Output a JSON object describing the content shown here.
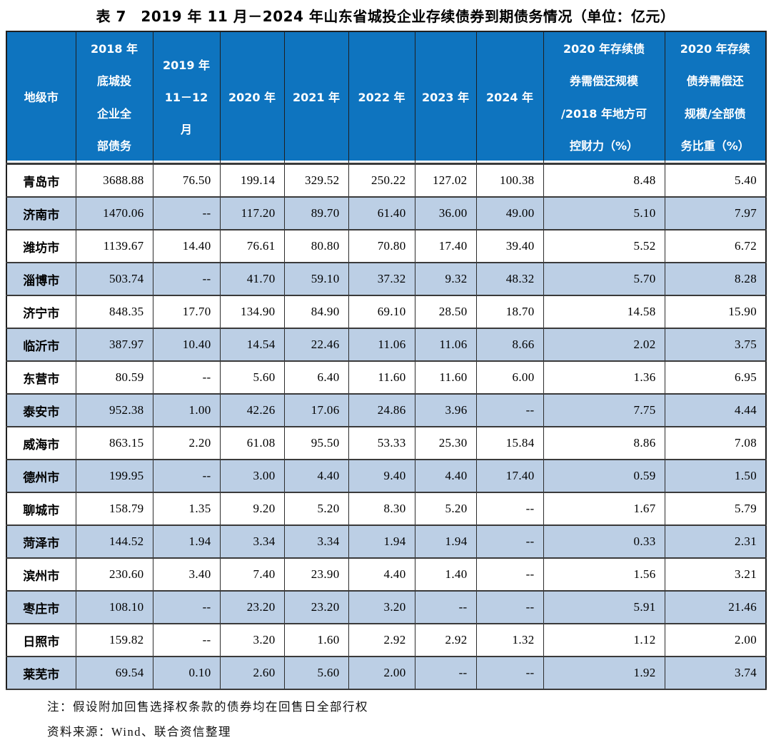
{
  "title": "表 7　2019 年 11 月－2024 年山东省城投企业存续债券到期债务情况（单位：亿元）",
  "table": {
    "columns": [
      "地级市",
      "2018 年\n底城投\n企业全\n部债务",
      "2019 年\n11－12\n月",
      "2020 年",
      "2021 年",
      "2022 年",
      "2023 年",
      "2024 年",
      "2020 年存续债\n券需偿还规模\n/2018 年地方可\n控财力（%）",
      "2020 年存续\n债券需偿还\n规模/全部债\n务比重（%）"
    ],
    "rows": [
      [
        "青岛市",
        "3688.88",
        "76.50",
        "199.14",
        "329.52",
        "250.22",
        "127.02",
        "100.38",
        "8.48",
        "5.40"
      ],
      [
        "济南市",
        "1470.06",
        "--",
        "117.20",
        "89.70",
        "61.40",
        "36.00",
        "49.00",
        "5.10",
        "7.97"
      ],
      [
        "潍坊市",
        "1139.67",
        "14.40",
        "76.61",
        "80.80",
        "70.80",
        "17.40",
        "39.40",
        "5.52",
        "6.72"
      ],
      [
        "淄博市",
        "503.74",
        "--",
        "41.70",
        "59.10",
        "37.32",
        "9.32",
        "48.32",
        "5.70",
        "8.28"
      ],
      [
        "济宁市",
        "848.35",
        "17.70",
        "134.90",
        "84.90",
        "69.10",
        "28.50",
        "18.70",
        "14.58",
        "15.90"
      ],
      [
        "临沂市",
        "387.97",
        "10.40",
        "14.54",
        "22.46",
        "11.06",
        "11.06",
        "8.66",
        "2.02",
        "3.75"
      ],
      [
        "东营市",
        "80.59",
        "--",
        "5.60",
        "6.40",
        "11.60",
        "11.60",
        "6.00",
        "1.36",
        "6.95"
      ],
      [
        "泰安市",
        "952.38",
        "1.00",
        "42.26",
        "17.06",
        "24.86",
        "3.96",
        "--",
        "7.75",
        "4.44"
      ],
      [
        "威海市",
        "863.15",
        "2.20",
        "61.08",
        "95.50",
        "53.33",
        "25.30",
        "15.84",
        "8.86",
        "7.08"
      ],
      [
        "德州市",
        "199.95",
        "--",
        "3.00",
        "4.40",
        "9.40",
        "4.40",
        "17.40",
        "0.59",
        "1.50"
      ],
      [
        "聊城市",
        "158.79",
        "1.35",
        "9.20",
        "5.20",
        "8.30",
        "5.20",
        "--",
        "1.67",
        "5.79"
      ],
      [
        "菏泽市",
        "144.52",
        "1.94",
        "3.34",
        "3.34",
        "1.94",
        "1.94",
        "--",
        "0.33",
        "2.31"
      ],
      [
        "滨州市",
        "230.60",
        "3.40",
        "7.40",
        "23.90",
        "4.40",
        "1.40",
        "--",
        "1.56",
        "3.21"
      ],
      [
        "枣庄市",
        "108.10",
        "--",
        "23.20",
        "23.20",
        "3.20",
        "--",
        "--",
        "5.91",
        "21.46"
      ],
      [
        "日照市",
        "159.82",
        "--",
        "3.20",
        "1.60",
        "2.92",
        "2.92",
        "1.32",
        "1.12",
        "2.00"
      ],
      [
        "莱芜市",
        "69.54",
        "0.10",
        "2.60",
        "5.60",
        "2.00",
        "--",
        "--",
        "1.92",
        "3.74"
      ]
    ]
  },
  "notes": {
    "note": "注：假设附加回售选择权条款的债券均在回售日全部行权",
    "source": "资料来源：Wind、联合资信整理"
  },
  "colors": {
    "header_bg": "#0E74BF",
    "alt_row_bg": "#BCCFE5",
    "border": "#2c2c2c",
    "header_text": "#ffffff",
    "body_text": "#000000"
  }
}
